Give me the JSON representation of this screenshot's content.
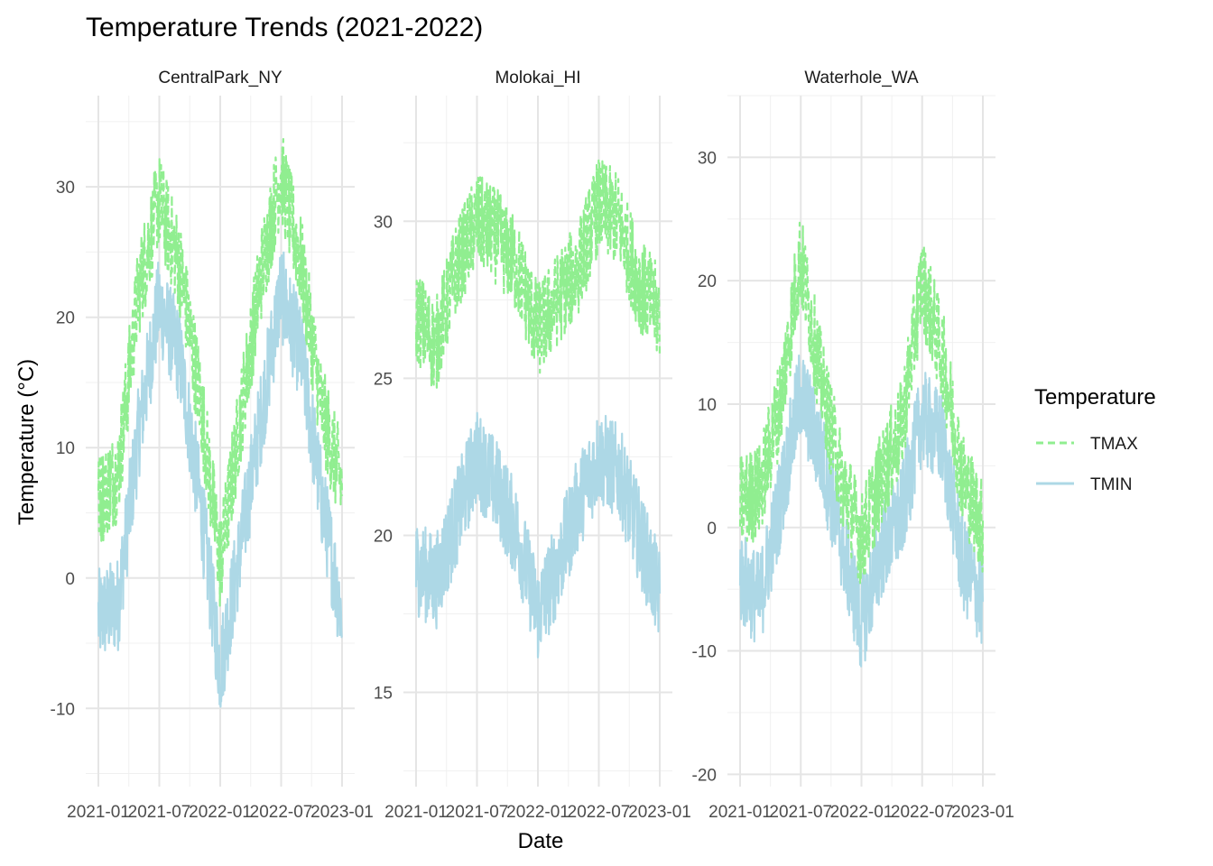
{
  "chart_data": {
    "type": "line",
    "title": "Temperature Trends (2021-2022)",
    "xlabel": "Date",
    "ylabel": "Temperature (°C)",
    "legend": {
      "title": "Temperature",
      "position": "right",
      "entries": [
        {
          "label": "TMAX",
          "color": "#90EE90",
          "linestyle": "dashed"
        },
        {
          "label": "TMIN",
          "color": "#ADD8E6",
          "linestyle": "solid"
        }
      ]
    },
    "x_ticks": [
      "2021-01",
      "2021-07",
      "2022-01",
      "2022-07",
      "2023-01"
    ],
    "grid": true,
    "facets": [
      {
        "name": "CentralPark_NY",
        "ylim": [
          -16,
          37
        ],
        "y_ticks": [
          -10,
          0,
          10,
          20,
          30
        ],
        "series": [
          {
            "name": "TMAX",
            "x": [
              "2021-01",
              "2021-03",
              "2021-05",
              "2021-07",
              "2021-09",
              "2021-11",
              "2022-01",
              "2022-03",
              "2022-05",
              "2022-07",
              "2022-09",
              "2022-11",
              "2023-01"
            ],
            "values": [
              6,
              8,
              22,
              29,
              24,
              14,
              1,
              12,
              23,
              31,
              24,
              13,
              7
            ]
          },
          {
            "name": "TMIN",
            "x": [
              "2021-01",
              "2021-03",
              "2021-05",
              "2021-07",
              "2021-09",
              "2021-11",
              "2022-01",
              "2022-03",
              "2022-05",
              "2022-07",
              "2022-09",
              "2022-11",
              "2023-01"
            ],
            "values": [
              -3,
              -2,
              11,
              21,
              17,
              6,
              -7,
              2,
              12,
              22,
              17,
              6,
              -3
            ]
          }
        ]
      },
      {
        "name": "Molokai_HI",
        "ylim": [
          12,
          34
        ],
        "y_ticks": [
          15,
          20,
          25,
          30
        ],
        "series": [
          {
            "name": "TMAX",
            "x": [
              "2021-01",
              "2021-03",
              "2021-05",
              "2021-07",
              "2021-09",
              "2021-11",
              "2022-01",
              "2022-03",
              "2022-05",
              "2022-07",
              "2022-09",
              "2022-11",
              "2023-01"
            ],
            "values": [
              27,
              26,
              28.5,
              30,
              29.5,
              28.5,
              26.5,
              27.5,
              28.5,
              30.5,
              30,
              28,
              27
            ]
          },
          {
            "name": "TMIN",
            "x": [
              "2021-01",
              "2021-03",
              "2021-05",
              "2021-07",
              "2021-09",
              "2021-11",
              "2022-01",
              "2022-03",
              "2022-05",
              "2022-07",
              "2022-09",
              "2022-11",
              "2023-01"
            ],
            "values": [
              19,
              18.5,
              20.5,
              22.5,
              21.5,
              20,
              17.5,
              19,
              21,
              22.5,
              22,
              20,
              18
            ]
          }
        ]
      },
      {
        "name": "Waterhole_WA",
        "ylim": [
          -21,
          35
        ],
        "y_ticks": [
          -20,
          -10,
          0,
          10,
          20,
          30
        ],
        "series": [
          {
            "name": "TMAX",
            "x": [
              "2021-01",
              "2021-03",
              "2021-05",
              "2021-07",
              "2021-09",
              "2021-11",
              "2022-01",
              "2022-03",
              "2022-05",
              "2022-07",
              "2022-09",
              "2022-11",
              "2023-01"
            ],
            "values": [
              2,
              3,
              10,
              22,
              12,
              4,
              -1,
              4,
              8,
              20,
              14,
              4,
              0
            ]
          },
          {
            "name": "TMIN",
            "x": [
              "2021-01",
              "2021-03",
              "2021-05",
              "2021-07",
              "2021-09",
              "2021-11",
              "2022-01",
              "2022-03",
              "2022-05",
              "2022-07",
              "2022-09",
              "2022-11",
              "2023-01"
            ],
            "values": [
              -4,
              -6,
              2,
              11,
              6,
              -1,
              -8,
              -2,
              1,
              9,
              7,
              -3,
              -6
            ]
          }
        ]
      }
    ]
  }
}
